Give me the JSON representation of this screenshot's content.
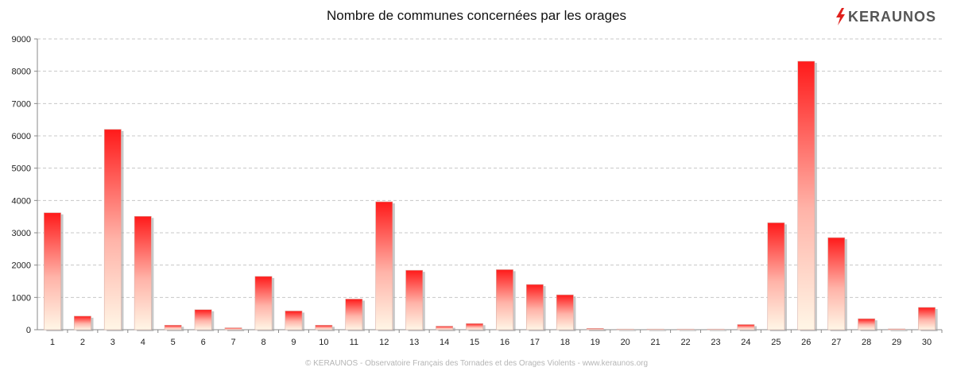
{
  "chart_data": {
    "type": "bar",
    "title": "Nombre de communes concernées par les orages",
    "xlabel": "",
    "ylabel": "",
    "ylim": [
      0,
      9000
    ],
    "yticks": [
      0,
      1000,
      2000,
      3000,
      4000,
      5000,
      6000,
      7000,
      8000,
      9000
    ],
    "grid": true,
    "categories": [
      "1",
      "2",
      "3",
      "4",
      "5",
      "6",
      "7",
      "8",
      "9",
      "10",
      "11",
      "12",
      "13",
      "14",
      "15",
      "16",
      "17",
      "18",
      "19",
      "20",
      "21",
      "22",
      "23",
      "24",
      "25",
      "26",
      "27",
      "28",
      "29",
      "30"
    ],
    "values": [
      3620,
      420,
      6200,
      3510,
      140,
      620,
      60,
      1650,
      580,
      140,
      950,
      3960,
      1840,
      110,
      190,
      1860,
      1400,
      1080,
      40,
      20,
      20,
      5,
      5,
      160,
      3310,
      8310,
      2850,
      340,
      25,
      690
    ]
  },
  "brand": {
    "name": "KERAUNOS",
    "icon": "lightning-bolt-icon",
    "icon_color": "#e0201c"
  },
  "footer": {
    "text": "© KERAUNOS - Observatoire Français des Tornades et des Orages Violents - www.keraunos.org"
  },
  "colors": {
    "bar_top": "#ff1a1a",
    "bar_bottom": "#fff6e6",
    "grid": "#c8c8c8"
  }
}
